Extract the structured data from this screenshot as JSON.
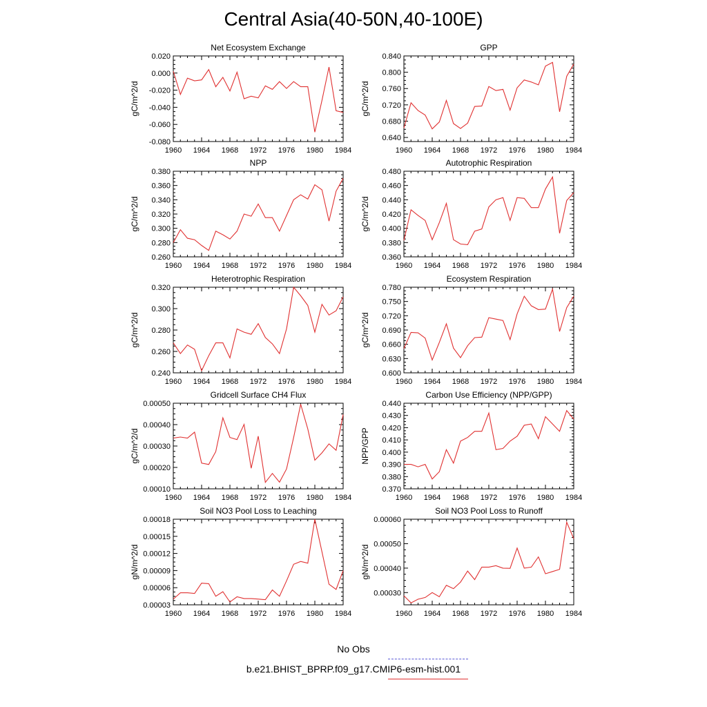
{
  "page_title": "Central Asia(40-50N,40-100E)",
  "legend": {
    "obs_label": "No Obs",
    "model_label": "b.e21.BHIST_BPRP.f09_g17.CMIP6-esm-hist.001",
    "obs_color": "#5a5ad6",
    "model_color": "#e03030"
  },
  "chart_data": [
    {
      "type": "line",
      "title": "Net Ecosystem Exchange",
      "ylabel": "gC/m^2/d",
      "xlim": [
        1960,
        1984
      ],
      "ylim": [
        -0.08,
        0.02
      ],
      "xticks": [
        "1960",
        "1964",
        "1968",
        "1972",
        "1976",
        "1980",
        "1984"
      ],
      "yticks": [
        "-0.080",
        "-0.060",
        "-0.040",
        "-0.020",
        "0.000",
        "0.020"
      ],
      "x": [
        1960,
        1961,
        1962,
        1963,
        1964,
        1965,
        1966,
        1967,
        1968,
        1969,
        1970,
        1971,
        1972,
        1973,
        1974,
        1975,
        1976,
        1977,
        1978,
        1979,
        1980,
        1981,
        1982,
        1983,
        1984
      ],
      "series": [
        {
          "values": [
            0.002,
            -0.025,
            -0.006,
            -0.009,
            -0.008,
            0.004,
            -0.016,
            -0.005,
            -0.021,
            0.001,
            -0.03,
            -0.027,
            -0.029,
            -0.015,
            -0.019,
            -0.01,
            -0.018,
            -0.01,
            -0.016,
            -0.016,
            -0.069,
            -0.032,
            0.007,
            -0.044,
            -0.046
          ]
        }
      ]
    },
    {
      "type": "line",
      "title": "GPP",
      "ylabel": "gC/m^2/d",
      "xlim": [
        1960,
        1984
      ],
      "ylim": [
        0.63,
        0.84
      ],
      "xticks": [
        "1960",
        "1964",
        "1968",
        "1972",
        "1976",
        "1980",
        "1984"
      ],
      "yticks": [
        "0.640",
        "0.680",
        "0.720",
        "0.760",
        "0.800",
        "0.840"
      ],
      "x": [
        1960,
        1961,
        1962,
        1963,
        1964,
        1965,
        1966,
        1967,
        1968,
        1969,
        1970,
        1971,
        1972,
        1973,
        1974,
        1975,
        1976,
        1977,
        1978,
        1979,
        1980,
        1981,
        1982,
        1983,
        1984
      ],
      "series": [
        {
          "values": [
            0.663,
            0.725,
            0.706,
            0.695,
            0.661,
            0.678,
            0.731,
            0.674,
            0.662,
            0.675,
            0.716,
            0.717,
            0.765,
            0.755,
            0.758,
            0.707,
            0.762,
            0.781,
            0.776,
            0.769,
            0.815,
            0.824,
            0.703,
            0.79,
            0.82
          ]
        }
      ]
    },
    {
      "type": "line",
      "title": "NPP",
      "ylabel": "gC/m^2/d",
      "xlim": [
        1960,
        1984
      ],
      "ylim": [
        0.26,
        0.38
      ],
      "xticks": [
        "1960",
        "1964",
        "1968",
        "1972",
        "1976",
        "1980",
        "1984"
      ],
      "yticks": [
        "0.260",
        "0.280",
        "0.300",
        "0.320",
        "0.340",
        "0.360",
        "0.380"
      ],
      "x": [
        1960,
        1961,
        1962,
        1963,
        1964,
        1965,
        1966,
        1967,
        1968,
        1969,
        1970,
        1971,
        1972,
        1973,
        1974,
        1975,
        1976,
        1977,
        1978,
        1979,
        1980,
        1981,
        1982,
        1983,
        1984
      ],
      "series": [
        {
          "values": [
            0.28,
            0.298,
            0.286,
            0.284,
            0.276,
            0.269,
            0.296,
            0.291,
            0.285,
            0.296,
            0.32,
            0.317,
            0.334,
            0.315,
            0.315,
            0.296,
            0.318,
            0.34,
            0.347,
            0.341,
            0.361,
            0.354,
            0.31,
            0.352,
            0.37
          ]
        }
      ]
    },
    {
      "type": "line",
      "title": "Autotrophic Respiration",
      "ylabel": "gC/m^2/d",
      "xlim": [
        1960,
        1984
      ],
      "ylim": [
        0.36,
        0.48
      ],
      "xticks": [
        "1960",
        "1964",
        "1968",
        "1972",
        "1976",
        "1980",
        "1984"
      ],
      "yticks": [
        "0.360",
        "0.380",
        "0.400",
        "0.420",
        "0.440",
        "0.460",
        "0.480"
      ],
      "x": [
        1960,
        1961,
        1962,
        1963,
        1964,
        1965,
        1966,
        1967,
        1968,
        1969,
        1970,
        1971,
        1972,
        1973,
        1974,
        1975,
        1976,
        1977,
        1978,
        1979,
        1980,
        1981,
        1982,
        1983,
        1984
      ],
      "series": [
        {
          "values": [
            0.383,
            0.426,
            0.418,
            0.411,
            0.384,
            0.408,
            0.435,
            0.384,
            0.378,
            0.377,
            0.396,
            0.399,
            0.43,
            0.44,
            0.443,
            0.411,
            0.443,
            0.442,
            0.429,
            0.429,
            0.455,
            0.472,
            0.393,
            0.439,
            0.45
          ]
        }
      ]
    },
    {
      "type": "line",
      "title": "Heterotrophic Respiration",
      "ylabel": "gC/m^2/d",
      "xlim": [
        1960,
        1984
      ],
      "ylim": [
        0.24,
        0.32
      ],
      "xticks": [
        "1960",
        "1964",
        "1968",
        "1972",
        "1976",
        "1980",
        "1984"
      ],
      "yticks": [
        "0.240",
        "0.260",
        "0.280",
        "0.300",
        "0.320"
      ],
      "x": [
        1960,
        1961,
        1962,
        1963,
        1964,
        1965,
        1966,
        1967,
        1968,
        1969,
        1970,
        1971,
        1972,
        1973,
        1974,
        1975,
        1976,
        1977,
        1978,
        1979,
        1980,
        1981,
        1982,
        1983,
        1984
      ],
      "series": [
        {
          "values": [
            0.268,
            0.258,
            0.266,
            0.262,
            0.242,
            0.256,
            0.268,
            0.268,
            0.254,
            0.281,
            0.278,
            0.276,
            0.286,
            0.273,
            0.267,
            0.258,
            0.281,
            0.32,
            0.312,
            0.303,
            0.278,
            0.304,
            0.294,
            0.298,
            0.311
          ]
        }
      ]
    },
    {
      "type": "line",
      "title": "Ecosystem Respiration",
      "ylabel": "gC/m^2/d",
      "xlim": [
        1960,
        1984
      ],
      "ylim": [
        0.6,
        0.78
      ],
      "xticks": [
        "1960",
        "1964",
        "1968",
        "1972",
        "1976",
        "1980",
        "1984"
      ],
      "yticks": [
        "0.600",
        "0.630",
        "0.660",
        "0.690",
        "0.720",
        "0.750",
        "0.780"
      ],
      "x": [
        1960,
        1961,
        1962,
        1963,
        1964,
        1965,
        1966,
        1967,
        1968,
        1969,
        1970,
        1971,
        1972,
        1973,
        1974,
        1975,
        1976,
        1977,
        1978,
        1979,
        1980,
        1981,
        1982,
        1983,
        1984
      ],
      "series": [
        {
          "values": [
            0.651,
            0.685,
            0.684,
            0.673,
            0.627,
            0.664,
            0.703,
            0.652,
            0.632,
            0.657,
            0.674,
            0.675,
            0.716,
            0.713,
            0.71,
            0.67,
            0.724,
            0.761,
            0.741,
            0.733,
            0.734,
            0.776,
            0.687,
            0.737,
            0.761
          ]
        }
      ]
    },
    {
      "type": "line",
      "title": "Gridcell Surface CH4 Flux",
      "ylabel": "gC/m^2/d",
      "xlim": [
        1960,
        1984
      ],
      "ylim": [
        0.0001,
        0.0005
      ],
      "xticks": [
        "1960",
        "1964",
        "1968",
        "1972",
        "1976",
        "1980",
        "1984"
      ],
      "yticks": [
        "0.00010",
        "0.00020",
        "0.00030",
        "0.00040",
        "0.00050"
      ],
      "x": [
        1960,
        1961,
        1962,
        1963,
        1964,
        1965,
        1966,
        1967,
        1968,
        1969,
        1970,
        1971,
        1972,
        1973,
        1974,
        1975,
        1976,
        1977,
        1978,
        1979,
        1980,
        1981,
        1982,
        1983,
        1984
      ],
      "series": [
        {
          "values": [
            0.000337,
            0.000342,
            0.000337,
            0.000365,
            0.00022,
            0.000214,
            0.000274,
            0.000432,
            0.00034,
            0.00033,
            0.000401,
            0.000196,
            0.000346,
            0.00013,
            0.000172,
            0.000131,
            0.000193,
            0.00034,
            0.000495,
            0.00038,
            0.000234,
            0.000268,
            0.00031,
            0.00028,
            0.000447
          ]
        }
      ]
    },
    {
      "type": "line",
      "title": "Carbon Use Efficiency (NPP/GPP)",
      "ylabel": "NPP/GPP",
      "xlim": [
        1960,
        1984
      ],
      "ylim": [
        0.37,
        0.44
      ],
      "xticks": [
        "1960",
        "1964",
        "1968",
        "1972",
        "1976",
        "1980",
        "1984"
      ],
      "yticks": [
        "0.370",
        "0.380",
        "0.390",
        "0.400",
        "0.410",
        "0.420",
        "0.430",
        "0.440"
      ],
      "x": [
        1960,
        1961,
        1962,
        1963,
        1964,
        1965,
        1966,
        1967,
        1968,
        1969,
        1970,
        1971,
        1972,
        1973,
        1974,
        1975,
        1976,
        1977,
        1978,
        1979,
        1980,
        1981,
        1982,
        1983,
        1984
      ],
      "series": [
        {
          "values": [
            0.39,
            0.39,
            0.388,
            0.39,
            0.378,
            0.384,
            0.402,
            0.391,
            0.409,
            0.412,
            0.417,
            0.417,
            0.432,
            0.402,
            0.403,
            0.409,
            0.413,
            0.422,
            0.423,
            0.411,
            0.429,
            0.423,
            0.417,
            0.434,
            0.427
          ]
        }
      ]
    },
    {
      "type": "line",
      "title": "Soil NO3 Pool Loss to Leaching",
      "ylabel": "gN/m^2/d",
      "xlim": [
        1960,
        1984
      ],
      "ylim": [
        3e-05,
        0.00018
      ],
      "xticks": [
        "1960",
        "1964",
        "1968",
        "1972",
        "1976",
        "1980",
        "1984"
      ],
      "yticks": [
        "0.00003",
        "0.00006",
        "0.00009",
        "0.00012",
        "0.00015",
        "0.00018"
      ],
      "x": [
        1960,
        1961,
        1962,
        1963,
        1964,
        1965,
        1966,
        1967,
        1968,
        1969,
        1970,
        1971,
        1972,
        1973,
        1974,
        1975,
        1976,
        1977,
        1978,
        1979,
        1980,
        1981,
        1982,
        1983,
        1984
      ],
      "series": [
        {
          "values": [
            4e-05,
            5.1e-05,
            5.1e-05,
            5e-05,
            6.8e-05,
            6.7e-05,
            4.5e-05,
            5.3e-05,
            3.5e-05,
            4.4e-05,
            4.1e-05,
            4.1e-05,
            4e-05,
            3.9e-05,
            5.6e-05,
            4.5e-05,
            7.2e-05,
            0.000101,
            0.000106,
            0.000103,
            0.00018,
            0.000123,
            6.6e-05,
            5.7e-05,
            9e-05
          ]
        }
      ]
    },
    {
      "type": "line",
      "title": "Soil NO3 Pool Loss to Runoff",
      "ylabel": "gN/m^2/d",
      "xlim": [
        1960,
        1984
      ],
      "ylim": [
        0.00025,
        0.0006
      ],
      "xticks": [
        "1960",
        "1964",
        "1968",
        "1972",
        "1976",
        "1980",
        "1984"
      ],
      "yticks": [
        "0.00030",
        "0.00040",
        "0.00050",
        "0.00060"
      ],
      "x": [
        1960,
        1961,
        1962,
        1963,
        1964,
        1965,
        1966,
        1967,
        1968,
        1969,
        1970,
        1971,
        1972,
        1973,
        1974,
        1975,
        1976,
        1977,
        1978,
        1979,
        1980,
        1981,
        1982,
        1983,
        1984
      ],
      "series": [
        {
          "values": [
            0.000287,
            0.000258,
            0.000273,
            0.00028,
            0.0003,
            0.000283,
            0.00033,
            0.000316,
            0.000343,
            0.000388,
            0.000353,
            0.000404,
            0.000404,
            0.00041,
            0.0004,
            0.000399,
            0.000482,
            0.0004,
            0.000404,
            0.000446,
            0.000377,
            0.000386,
            0.000395,
            0.000588,
            0.00052
          ]
        }
      ]
    }
  ]
}
